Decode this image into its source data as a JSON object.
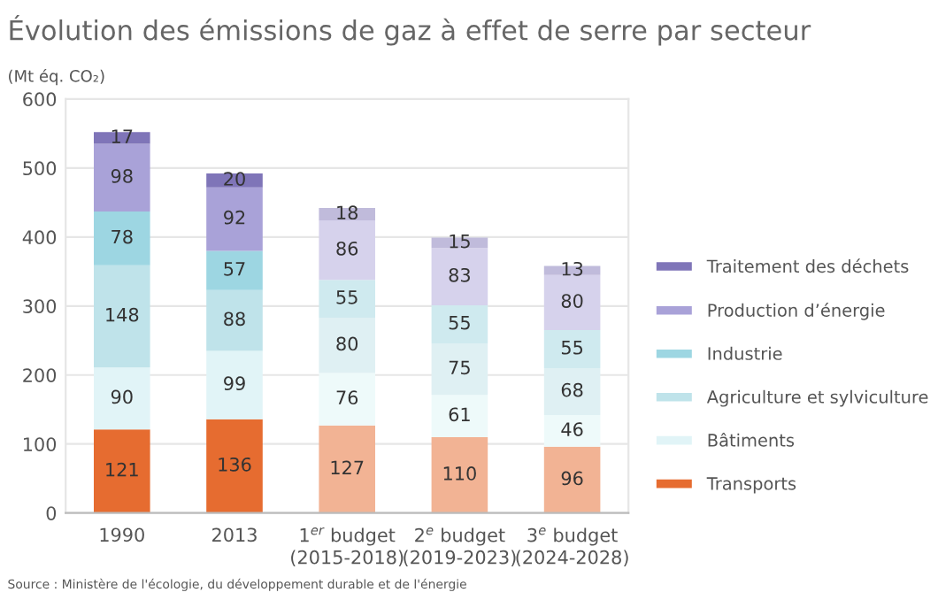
{
  "chart_data": {
    "type": "bar",
    "title": "Évolution des émissions de gaz à effet de serre par secteur",
    "ylabel": "(Mt éq. CO₂)",
    "categories": [
      "1990",
      "2013",
      "1$^{er}$ budget\n(2015-2018)",
      "2$^{e}$ budget\n(2019-2023)",
      "3$^{e}$ budget\n(2024-2028)"
    ],
    "stacked": true,
    "data_labels": true,
    "grid": "y",
    "legend": "right",
    "ylim": [
      0,
      600
    ],
    "yticks": [
      0,
      100,
      200,
      300,
      400,
      500,
      600
    ],
    "series": [
      {
        "name": "Transports",
        "color": "#e66c30",
        "colors": [
          "#e66c30",
          "#e66c30",
          "#f2b394",
          "#f2b394",
          "#f2b394"
        ],
        "values": [
          121,
          136,
          127,
          110,
          96
        ]
      },
      {
        "name": "Bâtiments",
        "color": "#e1f4f7",
        "colors": [
          "#e1f4f7",
          "#e1f4f7",
          "#eefafa",
          "#eefafa",
          "#eefafa"
        ],
        "values": [
          90,
          99,
          76,
          61,
          46
        ]
      },
      {
        "name": "Agriculture et sylviculture",
        "color": "#bfe3ea",
        "colors": [
          "#bfe3ea",
          "#bfe3ea",
          "#dff0f3",
          "#dff0f3",
          "#dff0f3"
        ],
        "values": [
          148,
          88,
          80,
          75,
          68
        ]
      },
      {
        "name": "Industrie",
        "color": "#9dd6e2",
        "colors": [
          "#9dd6e2",
          "#9dd6e2",
          "#cfeaef",
          "#cfeaef",
          "#cfeaef"
        ],
        "values": [
          78,
          57,
          55,
          55,
          55
        ]
      },
      {
        "name": "Production d’énergie",
        "color": "#a9a2d8",
        "colors": [
          "#a9a2d8",
          "#a9a2d8",
          "#d6d2ec",
          "#d6d2ec",
          "#d6d2ec"
        ],
        "values": [
          98,
          92,
          86,
          83,
          80
        ]
      },
      {
        "name": "Traitement des déchets",
        "color": "#7f75b8",
        "colors": [
          "#7f75b8",
          "#7f75b8",
          "#c0bbdb",
          "#c0bbdb",
          "#c0bbdb"
        ],
        "values": [
          17,
          20,
          18,
          15,
          13
        ]
      }
    ],
    "annotations": [
      "Source : Ministère de l'écologie, du développement durable et de l'énergie"
    ]
  }
}
